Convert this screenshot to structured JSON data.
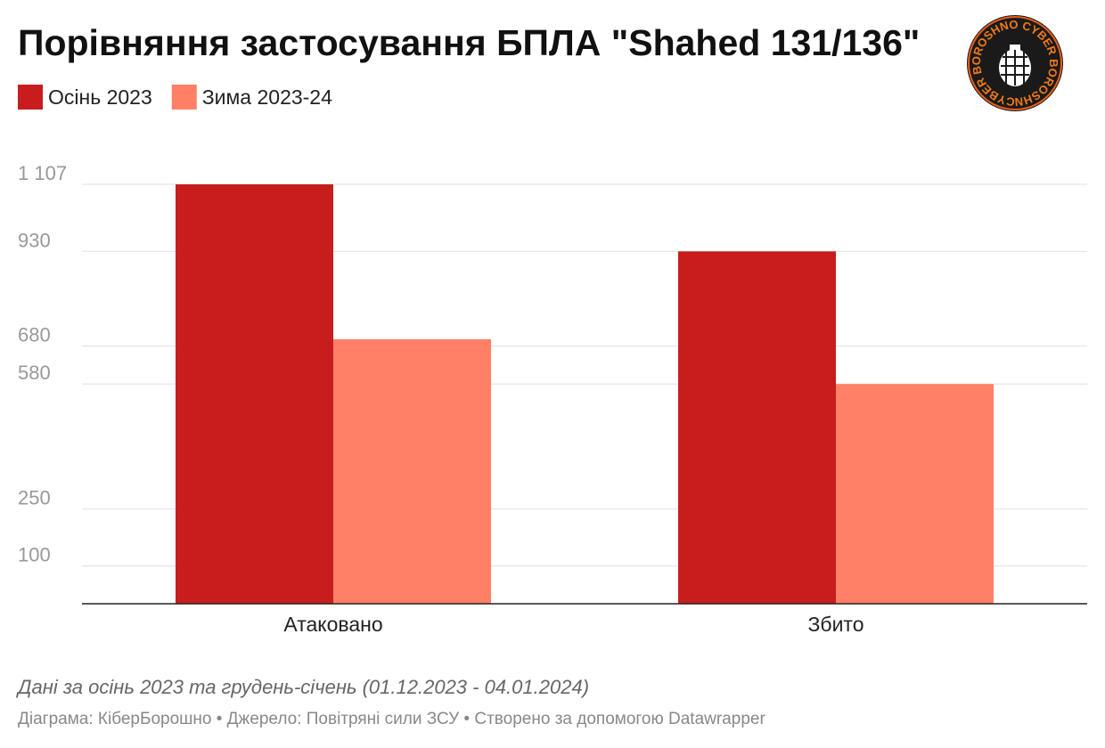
{
  "chart_data": {
    "type": "bar",
    "title": "Порівняння застосування БПЛА \"Shahed 131/136\"",
    "categories": [
      "Атаковано",
      "Збито"
    ],
    "series": [
      {
        "name": "Осінь 2023",
        "color": "#c71e1d",
        "values": [
          1107,
          930
        ]
      },
      {
        "name": "Зима 2023-24",
        "color": "#ff8066",
        "values": [
          698,
          580
        ]
      }
    ],
    "ylim": [
      0,
      1107
    ],
    "yticks": [
      {
        "value": 1107,
        "label": "1 107"
      },
      930,
      680,
      580,
      250,
      100
    ],
    "grid": true,
    "note": "Дані за осінь 2023 та грудень-січень (01.12.2023 - 04.01.2024)",
    "footer": "Діаграма: КіберБорошно • Джерело: Повітряні сили ЗСУ • Створено за допомогою Datawrapper"
  },
  "logo": {
    "text": "CYBER BOROSHNO CYBER BOROSHNO"
  }
}
